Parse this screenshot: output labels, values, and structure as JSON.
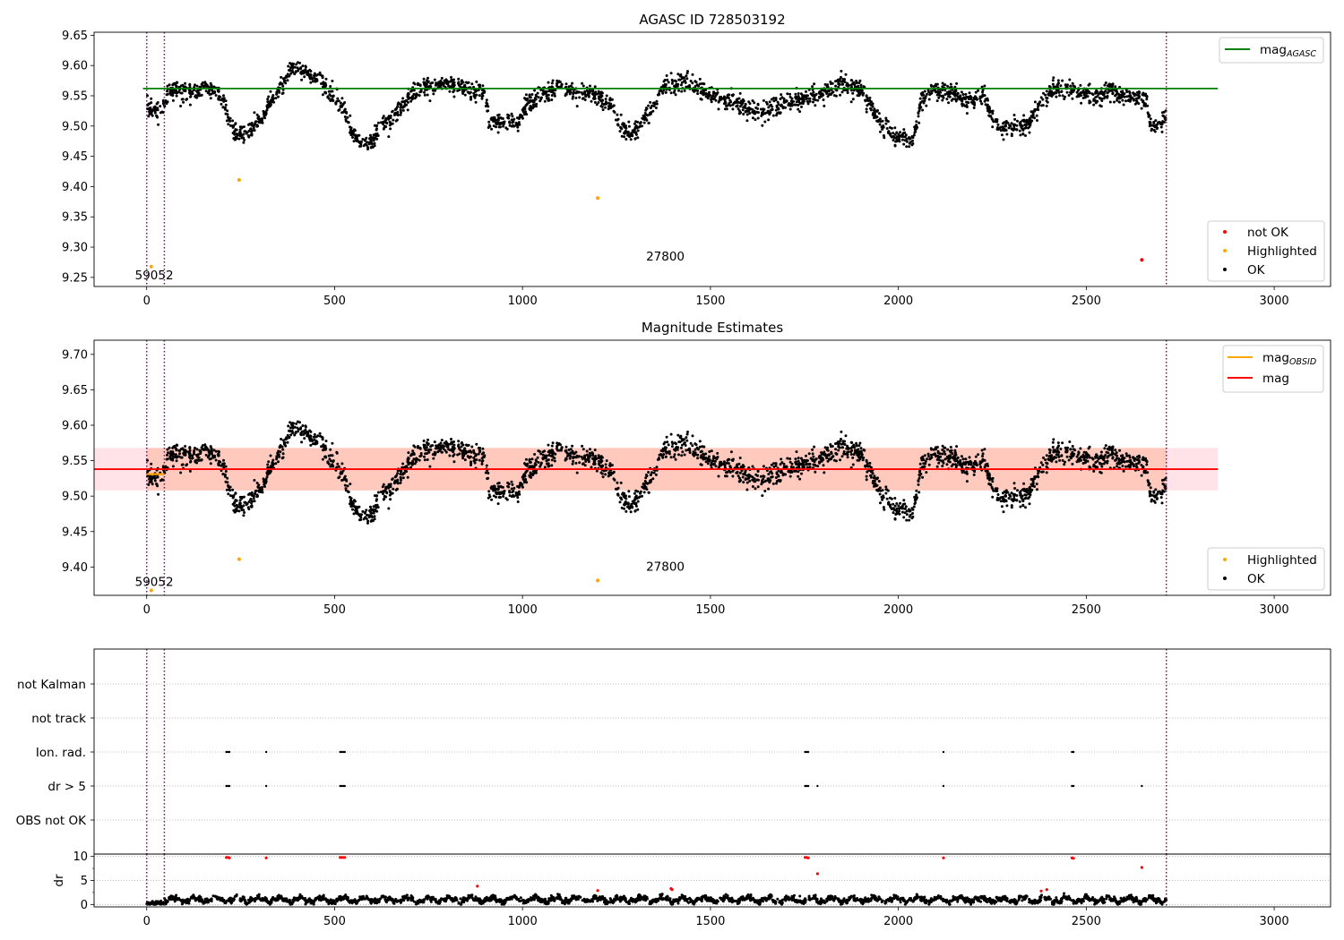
{
  "chart_data": [
    {
      "type": "scatter",
      "title": "AGASC ID 728503192",
      "xlabel": "",
      "ylabel": "",
      "xlim": [
        -140,
        3150
      ],
      "ylim": [
        9.235,
        9.655
      ],
      "xticks": [
        0,
        500,
        1000,
        1500,
        2000,
        2500,
        3000
      ],
      "yticks": [
        9.25,
        9.3,
        9.35,
        9.4,
        9.45,
        9.5,
        9.55,
        9.6,
        9.65
      ],
      "ytick_labels": [
        "9.25",
        "9.30",
        "9.35",
        "9.40",
        "9.45",
        "9.50",
        "9.55",
        "9.60",
        "9.65"
      ],
      "vlines": [
        0,
        47,
        2713
      ],
      "hline": {
        "name": "mag_AGASC",
        "y": 9.562,
        "x_range": [
          -10,
          2850
        ],
        "color": "#008000"
      },
      "series": [
        {
          "name": "OK",
          "color": "#000000",
          "values_note": "",
          "x_range": [
            0,
            2713
          ]
        },
        {
          "name": "Highlighted",
          "color": "#ffa500",
          "points": [
            [
              12,
              9.268
            ],
            [
              246,
              9.411
            ],
            [
              1200,
              9.381
            ]
          ]
        },
        {
          "name": "not OK",
          "color": "#ff0000",
          "points": [
            [
              2648,
              9.279
            ]
          ]
        }
      ],
      "annotations": [
        {
          "text": "59052",
          "x": 20,
          "y": 9.247
        },
        {
          "text": "27800",
          "x": 1380,
          "y": 9.278
        }
      ],
      "legend": {
        "position": "upper-right",
        "entries": [
          {
            "label": "mag",
            "sub": "AGASC",
            "color": "#008000"
          }
        ]
      },
      "legend2": {
        "position": "lower-right",
        "entries": [
          {
            "label": "not OK",
            "color": "#ff0000"
          },
          {
            "label": "Highlighted",
            "color": "#ffa500"
          },
          {
            "label": "OK",
            "color": "#000000"
          }
        ]
      }
    },
    {
      "type": "scatter",
      "title": "Magnitude Estimates",
      "xlabel": "",
      "ylabel": "",
      "xlim": [
        -140,
        3150
      ],
      "ylim": [
        9.36,
        9.72
      ],
      "xticks": [
        0,
        500,
        1000,
        1500,
        2000,
        2500,
        3000
      ],
      "yticks": [
        9.4,
        9.45,
        9.5,
        9.55,
        9.6,
        9.65,
        9.7
      ],
      "ytick_labels": [
        "9.40",
        "9.45",
        "9.50",
        "9.55",
        "9.60",
        "9.65",
        "9.70"
      ],
      "vlines": [
        0,
        47,
        2713
      ],
      "mag_line": {
        "name": "mag",
        "y": 9.538,
        "x_range": [
          -140,
          2850
        ],
        "band": [
          9.508,
          9.568
        ],
        "color": "#ff0000"
      },
      "obsid_segments": [
        {
          "x0": 0,
          "x1": 47,
          "y": 9.531,
          "color": "#ffa500"
        }
      ],
      "series": [
        {
          "name": "OK",
          "color": "#000000",
          "x_range": [
            0,
            2713
          ]
        },
        {
          "name": "Highlighted",
          "color": "#ffa500",
          "points": [
            [
              12,
              9.367
            ],
            [
              246,
              9.411
            ],
            [
              1200,
              9.381
            ]
          ]
        }
      ],
      "annotations": [
        {
          "text": "59052",
          "x": 20,
          "y": 9.373
        },
        {
          "text": "27800",
          "x": 1380,
          "y": 9.395
        }
      ],
      "legend": {
        "position": "upper-right",
        "entries": [
          {
            "label": "mag",
            "sub": "OBSID",
            "color": "#ffa500"
          },
          {
            "label": "mag",
            "color": "#ff0000"
          }
        ]
      },
      "legend2": {
        "position": "lower-right",
        "entries": [
          {
            "label": "Highlighted",
            "color": "#ffa500"
          },
          {
            "label": "OK",
            "color": "#000000"
          }
        ]
      }
    },
    {
      "type": "scatter",
      "title": "",
      "xlabel": "",
      "ylabel": "",
      "xlim": [
        -140,
        3150
      ],
      "xticks": [
        0,
        500,
        1000,
        1500,
        2000,
        2500,
        3000
      ],
      "flags": [
        "not Kalman",
        "not track",
        "Ion. rad.",
        "dr > 5",
        "OBS not OK"
      ],
      "flag_points": {
        "Ion. rad.": [
          212,
          216,
          220,
          318,
          515,
          519,
          523,
          527,
          1752,
          1756,
          1760,
          2120,
          2462,
          2466
        ],
        "dr > 5": [
          212,
          216,
          220,
          318,
          515,
          519,
          523,
          527,
          1752,
          1756,
          1760,
          1785,
          2120,
          2462,
          2466,
          2648
        ]
      },
      "vlines": [
        0,
        47,
        2713
      ]
    },
    {
      "type": "scatter",
      "title": "",
      "xlabel": "",
      "ylabel": "dr",
      "xlim": [
        -140,
        3150
      ],
      "ylim": [
        -0.5,
        10.5
      ],
      "yticks": [
        0,
        5,
        10
      ],
      "ytick_labels": [
        "0",
        "5",
        "10"
      ],
      "xticks": [
        0,
        500,
        1000,
        1500,
        2000,
        2500,
        3000
      ],
      "vlines": [
        0,
        47,
        2713
      ],
      "series": [
        {
          "name": "OK",
          "color": "#000000",
          "x_range": [
            0,
            2713
          ]
        },
        {
          "name": "not OK",
          "color": "#ff0000",
          "points": [
            [
              212,
              9.8
            ],
            [
              216,
              9.8
            ],
            [
              220,
              9.7
            ],
            [
              318,
              9.7
            ],
            [
              515,
              9.8
            ],
            [
              519,
              9.8
            ],
            [
              523,
              9.8
            ],
            [
              527,
              9.8
            ],
            [
              880,
              3.8
            ],
            [
              1200,
              2.9
            ],
            [
              1395,
              3.3
            ],
            [
              1398,
              3.1
            ],
            [
              1752,
              9.8
            ],
            [
              1756,
              9.8
            ],
            [
              1760,
              9.7
            ],
            [
              1785,
              6.4
            ],
            [
              2120,
              9.7
            ],
            [
              2380,
              2.8
            ],
            [
              2395,
              3.1
            ],
            [
              2462,
              9.7
            ],
            [
              2466,
              9.6
            ],
            [
              2648,
              7.7
            ]
          ]
        }
      ]
    }
  ]
}
